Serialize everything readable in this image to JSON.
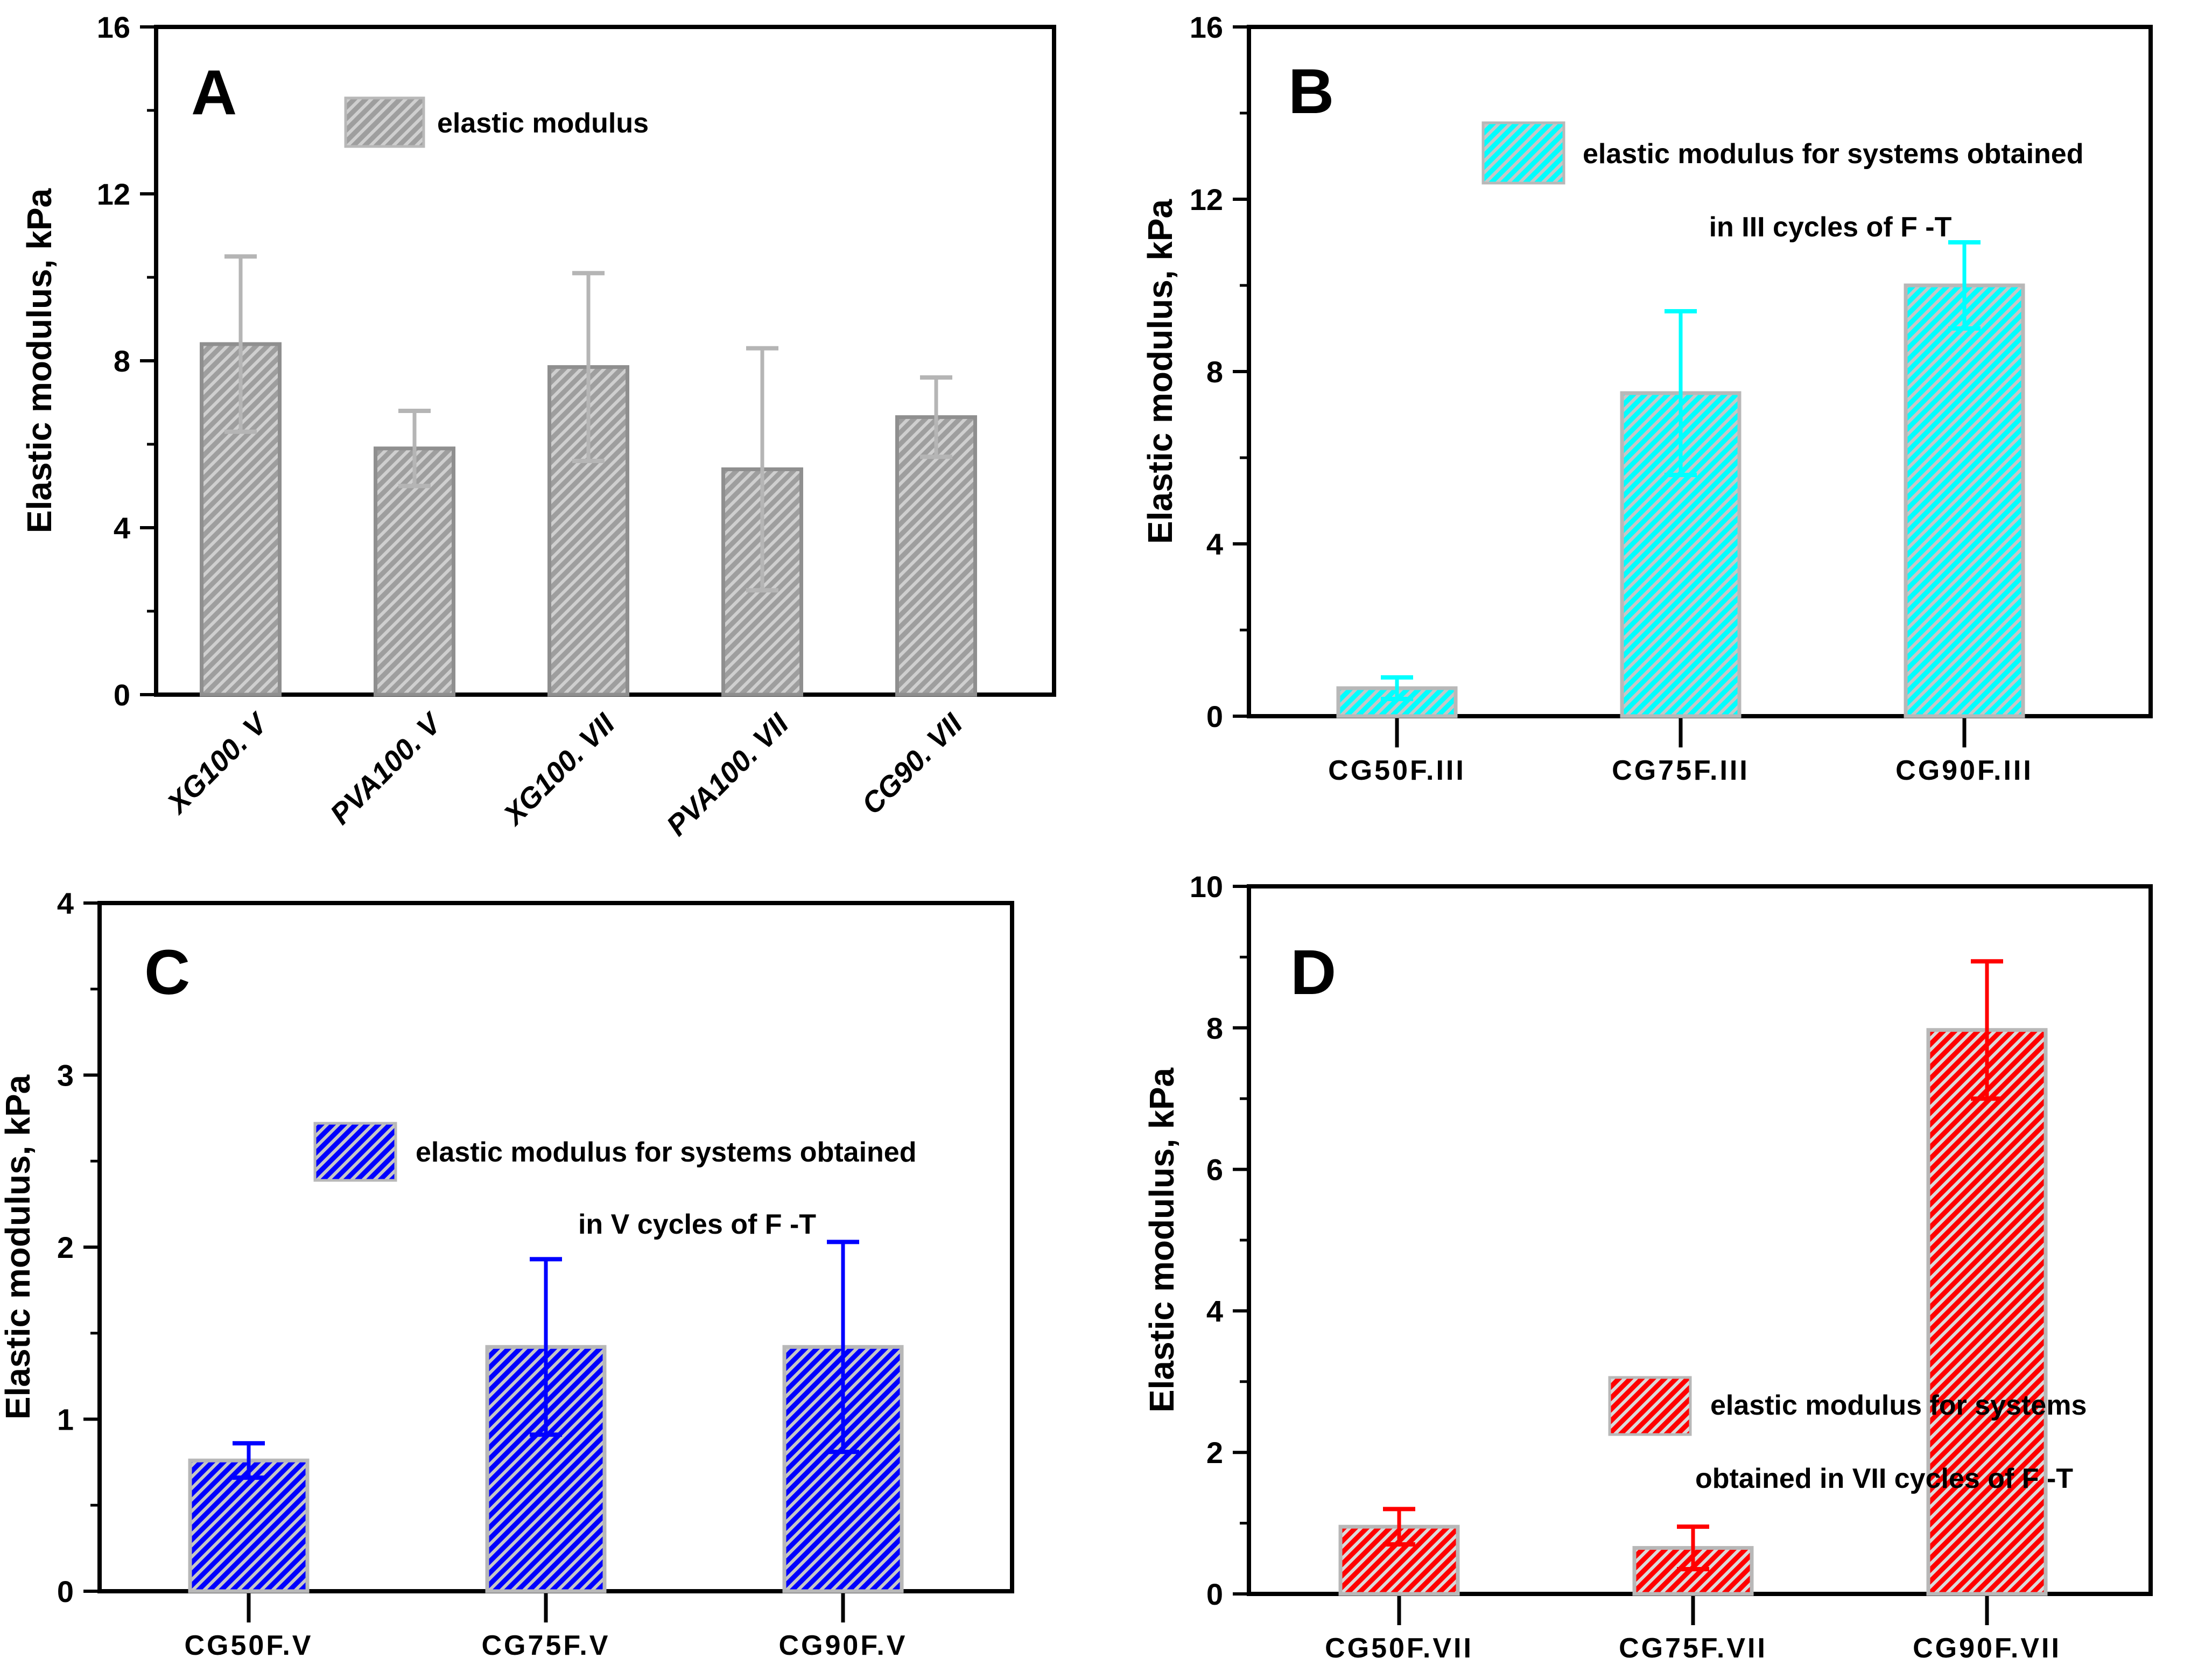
{
  "figure": {
    "background_color": "#ffffff",
    "axis_color": "#000000",
    "ylabel": "Elastic modulus, kPa"
  },
  "chart_data": [
    {
      "panel_label": "A",
      "type": "bar",
      "ylabel": "Elastic modulus, kPa",
      "ylim": [
        0,
        16
      ],
      "yticks": [
        0,
        4,
        8,
        12,
        16
      ],
      "minor_ticks": [
        2,
        6,
        10,
        14
      ],
      "categories": [
        "XG100. V",
        "PVA100. V",
        "XG100. VII",
        "PVA100. VII",
        "CG90. VII"
      ],
      "values": [
        8.4,
        5.9,
        7.85,
        5.4,
        6.65
      ],
      "errors": [
        2.1,
        0.9,
        2.25,
        2.9,
        0.95
      ],
      "legend_lines": [
        "elastic modulus"
      ],
      "grid": false,
      "x_tick_label_rotation": -45,
      "colors": {
        "bar_fill": "#9e9e9e",
        "hatch": "#cfcfcf",
        "bar_edge": "#8f8f8f",
        "error_bar": "#b5b5b5"
      }
    },
    {
      "panel_label": "B",
      "type": "bar",
      "ylabel": "Elastic modulus, kPa",
      "ylim": [
        0,
        16
      ],
      "yticks": [
        0,
        4,
        8,
        12,
        16
      ],
      "minor_ticks": [
        2,
        6,
        10,
        14
      ],
      "categories": [
        "CG50F.III",
        "CG75F.III",
        "CG90F.III"
      ],
      "values": [
        0.65,
        7.5,
        10.0
      ],
      "errors": [
        0.25,
        1.9,
        1.0
      ],
      "legend_lines": [
        "elastic modulus for systems obtained",
        "in III cycles of F -T"
      ],
      "grid": false,
      "x_tick_label_rotation": 0,
      "colors": {
        "bar_fill": "#00ffff",
        "hatch": "#c6c6c6",
        "bar_edge": "#b8b8b8",
        "error_bar": "#00ffff"
      }
    },
    {
      "panel_label": "C",
      "type": "bar",
      "ylabel": "Elastic modulus, kPa",
      "ylim": [
        0,
        4
      ],
      "yticks": [
        0,
        1,
        2,
        3,
        4
      ],
      "minor_ticks": [
        0.5,
        1.5,
        2.5,
        3.5
      ],
      "categories": [
        "CG50F.V",
        "CG75F.V",
        "CG90F.V"
      ],
      "values": [
        0.76,
        1.42,
        1.42
      ],
      "errors": [
        0.1,
        0.51,
        0.61
      ],
      "legend_lines": [
        "elastic modulus for systems obtained",
        "in V cycles of F -T"
      ],
      "grid": false,
      "x_tick_label_rotation": 0,
      "colors": {
        "bar_fill": "#0000ff",
        "hatch": "#c6c6c6",
        "bar_edge": "#b8b8b8",
        "error_bar": "#0000ff"
      }
    },
    {
      "panel_label": "D",
      "type": "bar",
      "ylabel": "Elastic modulus, kPa",
      "ylim": [
        0,
        10
      ],
      "yticks": [
        0,
        2,
        4,
        6,
        8,
        10
      ],
      "minor_ticks": [
        1,
        3,
        5,
        7,
        9
      ],
      "categories": [
        "CG50F.VII",
        "CG75F.VII",
        "CG90F.VII"
      ],
      "values": [
        0.95,
        0.65,
        7.97
      ],
      "errors": [
        0.25,
        0.3,
        0.97
      ],
      "legend_lines": [
        "elastic modulus for systems",
        "obtained in VII cycles of F -T"
      ],
      "grid": false,
      "x_tick_label_rotation": 0,
      "colors": {
        "bar_fill": "#ff0000",
        "hatch": "#dadada",
        "bar_edge": "#b8b8b8",
        "error_bar": "#ff0000"
      }
    }
  ]
}
